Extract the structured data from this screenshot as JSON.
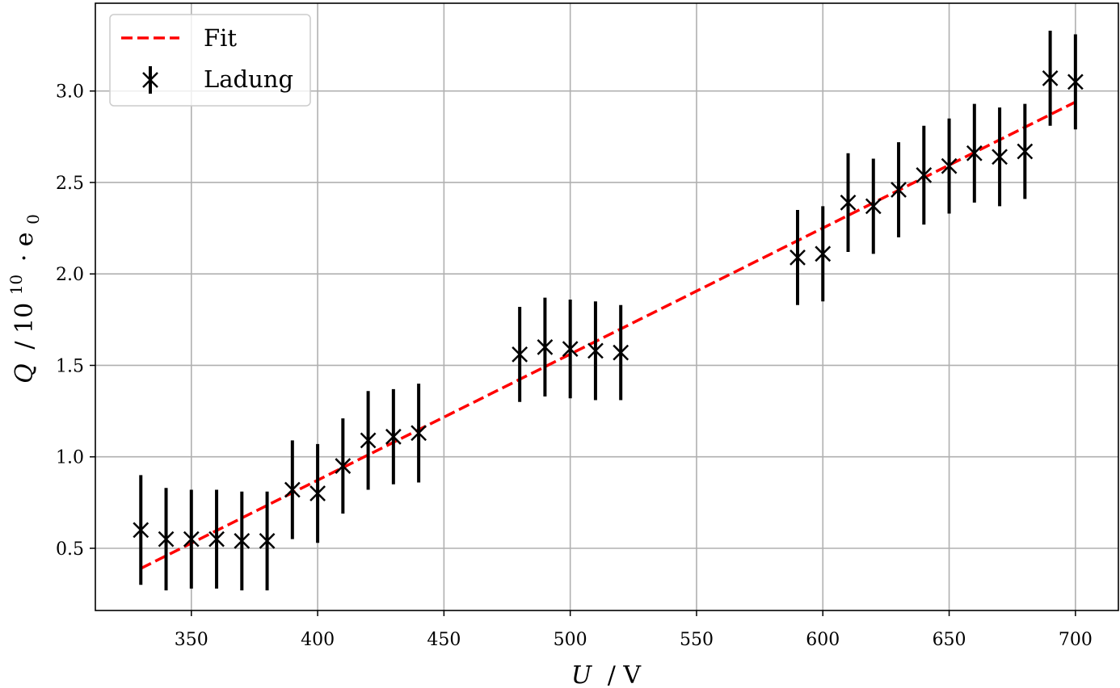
{
  "chart_data": {
    "type": "scatter",
    "xlabel_var": "U",
    "xlabel_unit": "/ V",
    "ylabel_var": "Q",
    "ylabel_unit": "/ 10",
    "ylabel_exp": "10",
    "ylabel_tail": "· e",
    "ylabel_sub": "0",
    "xlim": [
      312,
      717
    ],
    "ylim": [
      0.16,
      3.48
    ],
    "x_ticks": [
      350,
      400,
      450,
      500,
      550,
      600,
      650,
      700
    ],
    "y_ticks": [
      0.5,
      1.0,
      1.5,
      2.0,
      2.5,
      3.0
    ],
    "x_tick_labels": [
      "350",
      "400",
      "450",
      "500",
      "550",
      "600",
      "650",
      "700"
    ],
    "y_tick_labels": [
      "0.5",
      "1.0",
      "1.5",
      "2.0",
      "2.5",
      "3.0"
    ],
    "grid": true,
    "legend_position": "top-left",
    "fit": {
      "name": "Fit",
      "color": "#ff0000",
      "x": [
        330,
        700
      ],
      "y": [
        0.39,
        2.94
      ]
    },
    "series": [
      {
        "name": "Ladung",
        "color": "#000000",
        "x": [
          330,
          340,
          350,
          360,
          370,
          380,
          390,
          400,
          410,
          420,
          430,
          440,
          480,
          490,
          500,
          510,
          520,
          590,
          600,
          610,
          620,
          630,
          640,
          650,
          660,
          670,
          680,
          690,
          700
        ],
        "y": [
          0.6,
          0.55,
          0.55,
          0.55,
          0.54,
          0.54,
          0.82,
          0.8,
          0.95,
          1.09,
          1.11,
          1.13,
          1.56,
          1.6,
          1.59,
          1.58,
          1.57,
          2.09,
          2.11,
          2.39,
          2.37,
          2.46,
          2.54,
          2.59,
          2.66,
          2.64,
          2.67,
          3.07,
          3.05
        ],
        "yerr": [
          0.3,
          0.28,
          0.27,
          0.27,
          0.27,
          0.27,
          0.27,
          0.27,
          0.26,
          0.27,
          0.26,
          0.27,
          0.26,
          0.27,
          0.27,
          0.27,
          0.26,
          0.26,
          0.26,
          0.27,
          0.26,
          0.26,
          0.27,
          0.26,
          0.27,
          0.27,
          0.26,
          0.26,
          0.26
        ]
      }
    ]
  }
}
